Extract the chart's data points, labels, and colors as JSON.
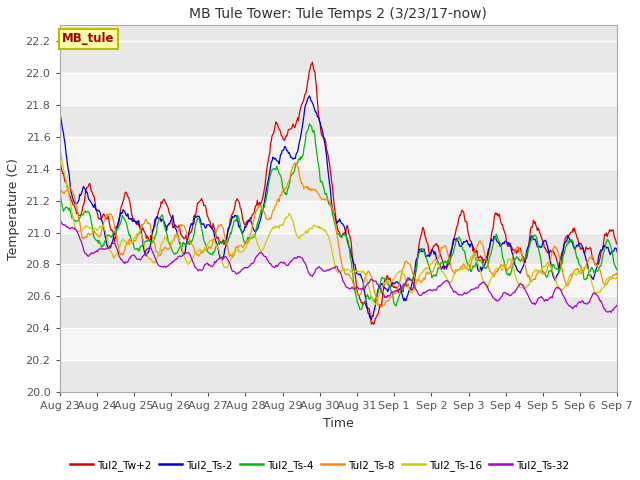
{
  "title": "MB Tule Tower: Tule Temps 2 (3/23/17-now)",
  "xlabel": "Time",
  "ylabel": "Temperature (C)",
  "ylim": [
    20.0,
    22.3
  ],
  "yticks": [
    20.0,
    20.2,
    20.4,
    20.6,
    20.8,
    21.0,
    21.2,
    21.4,
    21.6,
    21.8,
    22.0,
    22.2
  ],
  "fig_bg": "#ffffff",
  "plot_bg": "#e8e8e8",
  "stripe_colors": [
    "#e8e8e8",
    "#f5f5f5"
  ],
  "series": [
    {
      "label": "Tul2_Tw+2",
      "color": "#dd0000"
    },
    {
      "label": "Tul2_Ts-2",
      "color": "#0000dd"
    },
    {
      "label": "Tul2_Ts-4",
      "color": "#00bb00"
    },
    {
      "label": "Tul2_Ts-8",
      "color": "#ff8800"
    },
    {
      "label": "Tul2_Ts-16",
      "color": "#cccc00"
    },
    {
      "label": "Tul2_Ts-32",
      "color": "#aa00cc"
    }
  ],
  "legend_box_facecolor": "#ffffaa",
  "legend_box_edgecolor": "#bbbb00",
  "legend_text": "MB_tule",
  "legend_text_color": "#aa0000",
  "date_labels": [
    "Aug 23",
    "Aug 24",
    "Aug 25",
    "Aug 26",
    "Aug 27",
    "Aug 28",
    "Aug 29",
    "Aug 30",
    "Aug 31",
    "Sep 1",
    "Sep 2",
    "Sep 3",
    "Sep 4",
    "Sep 5",
    "Sep 6",
    "Sep 7"
  ]
}
